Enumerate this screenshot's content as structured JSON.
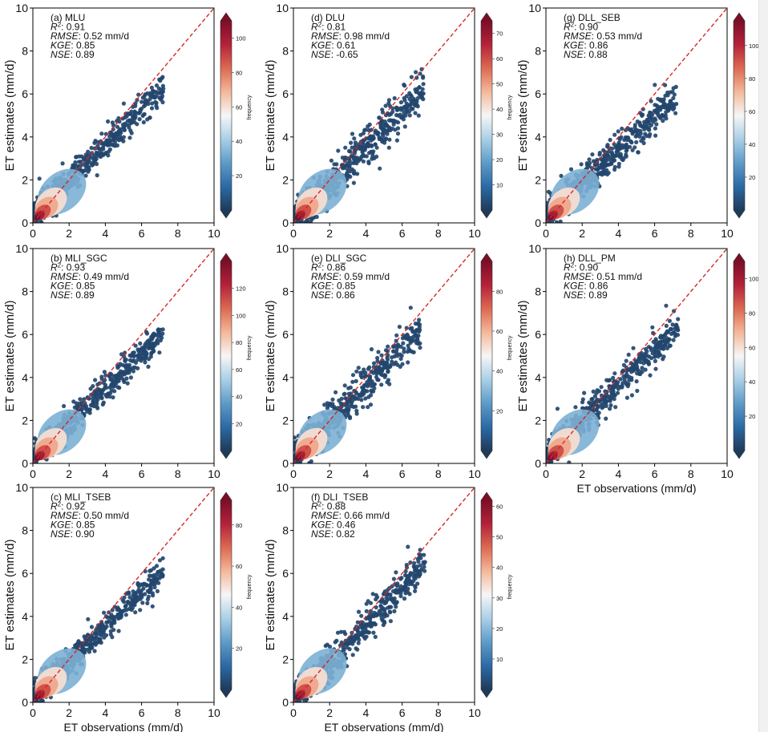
{
  "figure": {
    "x_axis_label": "ET observations (mm/d)",
    "y_axis_label": "ET estimates (mm/d)",
    "colorbar_label": "frequency",
    "colormap": [
      "#1f3b5a",
      "#2c6aa5",
      "#5e9bc8",
      "#a9cfe6",
      "#f6f6f6",
      "#f4b89a",
      "#dc6a52",
      "#b4223a",
      "#7a0e27"
    ],
    "point_color": "#23466e",
    "identity_line_color": "#d62728"
  },
  "chart_data": [
    {
      "panel": "a",
      "type": "scatter",
      "title": "(a) MLU",
      "stats": {
        "R2": "0.91",
        "RMSE": "0.52 mm/d",
        "KGE": "0.85",
        "NSE": "0.89"
      },
      "xlim": [
        0,
        10
      ],
      "ylim": [
        0,
        10
      ],
      "x_ticks": [
        "0",
        "2",
        "4",
        "6",
        "8",
        "10"
      ],
      "y_ticks": [
        "0",
        "2",
        "4",
        "6",
        "8",
        "10"
      ],
      "colorbar_ticks": [
        "20",
        "40",
        "60",
        "80",
        "100"
      ],
      "colorbar_max": 110,
      "identity_line": [
        [
          0,
          0
        ],
        [
          10,
          10
        ]
      ],
      "x_label": "",
      "y_label": "ET estimates (mm/d)",
      "cloud": {
        "slope": 0.82,
        "intercept": 0.35,
        "spread": 0.42,
        "x_max": 7.2
      }
    },
    {
      "panel": "d",
      "type": "scatter",
      "title": "(d) DLU",
      "stats": {
        "R2": "0.81",
        "RMSE": "0.98 mm/d",
        "KGE": "0.61",
        "NSE": "-0.65"
      },
      "xlim": [
        0,
        10
      ],
      "ylim": [
        0,
        10
      ],
      "x_ticks": [
        "0",
        "2",
        "4",
        "6",
        "8",
        "10"
      ],
      "y_ticks": [
        "0",
        "2",
        "4",
        "6",
        "8",
        "10"
      ],
      "colorbar_ticks": [
        "10",
        "20",
        "30",
        "40",
        "50",
        "60",
        "70"
      ],
      "colorbar_max": 75,
      "identity_line": [
        [
          0,
          0
        ],
        [
          10,
          10
        ]
      ],
      "x_label": "",
      "y_label": "ET estimates (mm/d)",
      "cloud": {
        "slope": 0.86,
        "intercept": 0.1,
        "spread": 0.55,
        "x_max": 7.2
      }
    },
    {
      "panel": "g",
      "type": "scatter",
      "title": "(g) DLL_SEB",
      "stats": {
        "R2": "0.90",
        "RMSE": "0.53 mm/d",
        "KGE": "0.86",
        "NSE": "0.88"
      },
      "xlim": [
        0,
        10
      ],
      "ylim": [
        0,
        10
      ],
      "x_ticks": [
        "0",
        "2",
        "4",
        "6",
        "8",
        "10"
      ],
      "y_ticks": [
        "0",
        "2",
        "4",
        "6",
        "8",
        "10"
      ],
      "colorbar_ticks": [
        "20",
        "40",
        "60",
        "80",
        "100"
      ],
      "colorbar_max": 115,
      "identity_line": [
        [
          0,
          0
        ],
        [
          10,
          10
        ]
      ],
      "x_label": "",
      "y_label": "ET estimates (mm/d)",
      "cloud": {
        "slope": 0.78,
        "intercept": 0.3,
        "spread": 0.45,
        "x_max": 7.2
      }
    },
    {
      "panel": "b",
      "type": "scatter",
      "title": "(b) MLI_SGC",
      "stats": {
        "R2": "0.93",
        "RMSE": "0.49 mm/d",
        "KGE": "0.85",
        "NSE": "0.89"
      },
      "xlim": [
        0,
        10
      ],
      "ylim": [
        0,
        10
      ],
      "x_ticks": [
        "0",
        "2",
        "4",
        "6",
        "8",
        "10"
      ],
      "y_ticks": [
        "0",
        "2",
        "4",
        "6",
        "8",
        "10"
      ],
      "colorbar_ticks": [
        "20",
        "40",
        "60",
        "80",
        "100",
        "120"
      ],
      "colorbar_max": 140,
      "identity_line": [
        [
          0,
          0
        ],
        [
          10,
          10
        ]
      ],
      "x_label": "",
      "y_label": "ET estimates (mm/d)",
      "cloud": {
        "slope": 0.8,
        "intercept": 0.3,
        "spread": 0.38,
        "x_max": 7.2
      }
    },
    {
      "panel": "e",
      "type": "scatter",
      "title": "(e) DLI_SGC",
      "stats": {
        "R2": "0.86",
        "RMSE": "0.59 mm/d",
        "KGE": "0.85",
        "NSE": "0.86"
      },
      "xlim": [
        0,
        10
      ],
      "ylim": [
        0,
        10
      ],
      "x_ticks": [
        "0",
        "2",
        "4",
        "6",
        "8",
        "10"
      ],
      "y_ticks": [
        "0",
        "2",
        "4",
        "6",
        "8",
        "10"
      ],
      "colorbar_ticks": [
        "20",
        "40",
        "60",
        "80"
      ],
      "colorbar_max": 95,
      "identity_line": [
        [
          0,
          0
        ],
        [
          10,
          10
        ]
      ],
      "x_label": "",
      "y_label": "ET estimates (mm/d)",
      "cloud": {
        "slope": 0.85,
        "intercept": 0.25,
        "spread": 0.5,
        "x_max": 7.0
      }
    },
    {
      "panel": "h",
      "type": "scatter",
      "title": "(h) DLL_PM",
      "stats": {
        "R2": "0.90",
        "RMSE": "0.51 mm/d",
        "KGE": "0.86",
        "NSE": "0.89"
      },
      "xlim": [
        0,
        10
      ],
      "ylim": [
        0,
        10
      ],
      "x_ticks": [
        "0",
        "2",
        "4",
        "6",
        "8",
        "10"
      ],
      "y_ticks": [
        "0",
        "2",
        "4",
        "6",
        "8",
        "10"
      ],
      "colorbar_ticks": [
        "20",
        "40",
        "60",
        "80",
        "100"
      ],
      "colorbar_max": 110,
      "identity_line": [
        [
          0,
          0
        ],
        [
          10,
          10
        ]
      ],
      "x_label": "ET observations (mm/d)",
      "y_label": "ET estimates (mm/d)",
      "cloud": {
        "slope": 0.84,
        "intercept": 0.3,
        "spread": 0.45,
        "x_max": 7.3
      }
    },
    {
      "panel": "c",
      "type": "scatter",
      "title": "(c) MLI_TSEB",
      "stats": {
        "R2": "0.92",
        "RMSE": "0.50 mm/d",
        "KGE": "0.85",
        "NSE": "0.90"
      },
      "xlim": [
        0,
        10
      ],
      "ylim": [
        0,
        10
      ],
      "x_ticks": [
        "0",
        "2",
        "4",
        "6",
        "8",
        "10"
      ],
      "y_ticks": [
        "0",
        "2",
        "4",
        "6",
        "8",
        "10"
      ],
      "colorbar_ticks": [
        "20",
        "40",
        "60",
        "80"
      ],
      "colorbar_max": 92,
      "identity_line": [
        [
          0,
          0
        ],
        [
          10,
          10
        ]
      ],
      "x_label": "ET observations (mm/d)",
      "y_label": "ET estimates (mm/d)",
      "cloud": {
        "slope": 0.8,
        "intercept": 0.3,
        "spread": 0.4,
        "x_max": 7.2
      }
    },
    {
      "panel": "f",
      "type": "scatter",
      "title": "(f) DLI_TSEB",
      "stats": {
        "R2": "0.88",
        "RMSE": "0.66 mm/d",
        "KGE": "0.46",
        "NSE": "0.82"
      },
      "xlim": [
        0,
        10
      ],
      "ylim": [
        0,
        10
      ],
      "x_ticks": [
        "0",
        "2",
        "4",
        "6",
        "8",
        "10"
      ],
      "y_ticks": [
        "0",
        "2",
        "4",
        "6",
        "8",
        "10"
      ],
      "colorbar_ticks": [
        "10",
        "20",
        "30",
        "40",
        "50",
        "60"
      ],
      "colorbar_max": 62,
      "identity_line": [
        [
          0,
          0
        ],
        [
          10,
          10
        ]
      ],
      "x_label": "ET observations (mm/d)",
      "y_label": "ET estimates (mm/d)",
      "cloud": {
        "slope": 0.88,
        "intercept": 0.1,
        "spread": 0.48,
        "x_max": 7.3
      }
    }
  ]
}
